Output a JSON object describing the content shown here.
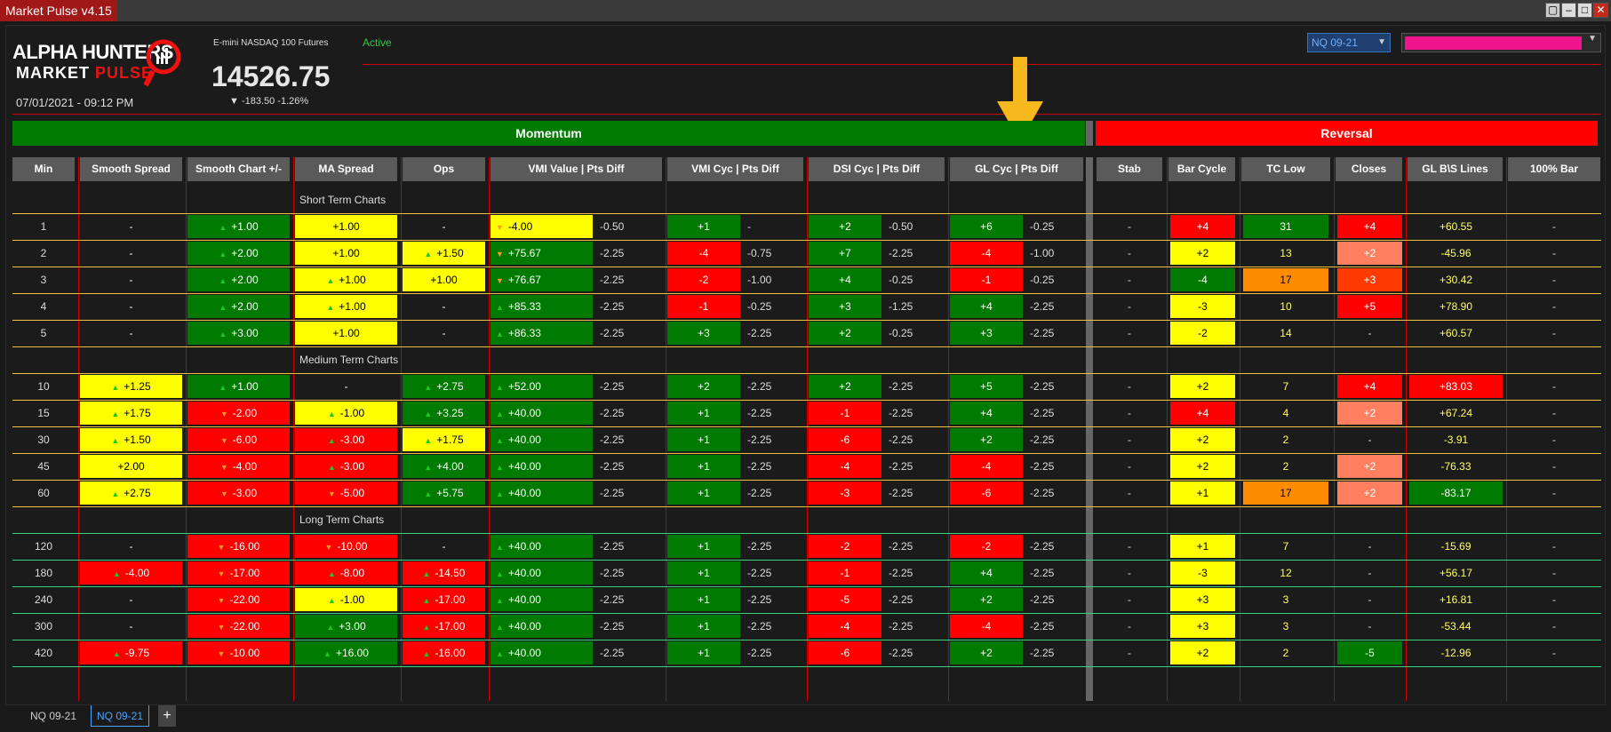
{
  "window": {
    "title": "Market Pulse v4.15"
  },
  "header": {
    "logo_line1_a": "ALPHA",
    "logo_line1_b": "HUNTERS",
    "logo_line2_a": "MARKET",
    "logo_line2_b": "PULSE",
    "instrument_name": "E-mini NASDAQ 100 Futures",
    "status": "Active",
    "price": "14526.75",
    "change": "▼ -183.50 -1.26%",
    "datetime": "07/01/2021 - 09:12 PM",
    "instrument_select": "NQ 09-21"
  },
  "colors": {
    "accent": "#c00000",
    "up": "#1ec81e",
    "down": "#ff9a1e",
    "green": "#007a00",
    "red": "#ff0000",
    "yellow": "#ffff00",
    "highlight": "#f0148c"
  },
  "bars": {
    "momentum": "Momentum",
    "reversal": "Reversal"
  },
  "columns": [
    "Min",
    "Smooth Spread",
    "Smooth Chart +/-",
    "MA Spread",
    "Ops",
    "VMI Value | Pts Diff",
    "VMI Cyc | Pts Diff",
    "DSI Cyc | Pts Diff",
    "GL Cyc | Pts Diff",
    "Stab",
    "Bar Cycle",
    "TC Low",
    "Closes",
    "GL B\\S Lines",
    "100% Bar"
  ],
  "sections": [
    "Short Term Charts",
    "Medium Term Charts",
    "Long Term Charts"
  ],
  "rows": [
    {
      "min": "1",
      "ss": [
        "-",
        ""
      ],
      "sc": [
        "+1.00",
        "g",
        "u"
      ],
      "ma": [
        "+1.00",
        "y",
        ""
      ],
      "ops": [
        "-",
        "",
        ""
      ],
      "vmi": [
        "-4.00",
        "y",
        "d"
      ],
      "vmid": "-0.50",
      "vc": [
        "+1",
        "g"
      ],
      "vcd": "-",
      "dc": [
        "+2",
        "g"
      ],
      "dcd": "-0.50",
      "gc": [
        "+6",
        "g"
      ],
      "gcd": "-0.25",
      "stab": "-",
      "bc": [
        "+4",
        "r"
      ],
      "tc": [
        "31",
        "g"
      ],
      "cl": [
        "+4",
        "r"
      ],
      "gl": [
        "+60.55",
        ""
      ],
      "hb": "-"
    },
    {
      "min": "2",
      "ss": [
        "-",
        ""
      ],
      "sc": [
        "+2.00",
        "g",
        "u"
      ],
      "ma": [
        "+1.00",
        "y",
        ""
      ],
      "ops": [
        "+1.50",
        "y",
        "u"
      ],
      "vmi": [
        "+75.67",
        "g",
        "d"
      ],
      "vmid": "-2.25",
      "vc": [
        "-4",
        "r"
      ],
      "vcd": "-0.75",
      "dc": [
        "+7",
        "g"
      ],
      "dcd": "-2.25",
      "gc": [
        "-4",
        "r"
      ],
      "gcd": "-1.00",
      "stab": "-",
      "bc": [
        "+2",
        "y"
      ],
      "tc": [
        "13",
        ""
      ],
      "cl": [
        "+2",
        "s"
      ],
      "gl": [
        "-45.96",
        ""
      ],
      "hb": "-"
    },
    {
      "min": "3",
      "ss": [
        "-",
        ""
      ],
      "sc": [
        "+2.00",
        "g",
        "u"
      ],
      "ma": [
        "+1.00",
        "y",
        "u"
      ],
      "ops": [
        "+1.00",
        "y",
        ""
      ],
      "vmi": [
        "+76.67",
        "g",
        "d"
      ],
      "vmid": "-2.25",
      "vc": [
        "-2",
        "r"
      ],
      "vcd": "-1.00",
      "dc": [
        "+4",
        "g"
      ],
      "dcd": "-0.25",
      "gc": [
        "-1",
        "r"
      ],
      "gcd": "-0.25",
      "stab": "-",
      "bc": [
        "-4",
        "g"
      ],
      "tc": [
        "17",
        "o"
      ],
      "cl": [
        "+3",
        "rd"
      ],
      "gl": [
        "+30.42",
        ""
      ],
      "hb": "-"
    },
    {
      "min": "4",
      "ss": [
        "-",
        ""
      ],
      "sc": [
        "+2.00",
        "g",
        "u"
      ],
      "ma": [
        "+1.00",
        "y",
        "u"
      ],
      "ops": [
        "-",
        "",
        ""
      ],
      "vmi": [
        "+85.33",
        "g",
        "u"
      ],
      "vmid": "-2.25",
      "vc": [
        "-1",
        "r"
      ],
      "vcd": "-0.25",
      "dc": [
        "+3",
        "g"
      ],
      "dcd": "-1.25",
      "gc": [
        "+4",
        "g"
      ],
      "gcd": "-2.25",
      "stab": "-",
      "bc": [
        "-3",
        "y"
      ],
      "tc": [
        "10",
        ""
      ],
      "cl": [
        "+5",
        "r"
      ],
      "gl": [
        "+78.90",
        ""
      ],
      "hb": "-"
    },
    {
      "min": "5",
      "ss": [
        "-",
        ""
      ],
      "sc": [
        "+3.00",
        "g",
        "u"
      ],
      "ma": [
        "+1.00",
        "y",
        ""
      ],
      "ops": [
        "-",
        "",
        ""
      ],
      "vmi": [
        "+86.33",
        "g",
        "u"
      ],
      "vmid": "-2.25",
      "vc": [
        "+3",
        "g"
      ],
      "vcd": "-2.25",
      "dc": [
        "+2",
        "g"
      ],
      "dcd": "-0.25",
      "gc": [
        "+3",
        "g"
      ],
      "gcd": "-2.25",
      "stab": "-",
      "bc": [
        "-2",
        "y"
      ],
      "tc": [
        "14",
        ""
      ],
      "cl": [
        "-",
        ""
      ],
      "gl": [
        "+60.57",
        ""
      ],
      "hb": "-"
    },
    {
      "min": "10",
      "ss": [
        "+1.25",
        "y",
        "u"
      ],
      "sc": [
        "+1.00",
        "g",
        "u"
      ],
      "ma": [
        "-",
        "",
        ""
      ],
      "ops": [
        "+2.75",
        "g",
        "u"
      ],
      "vmi": [
        "+52.00",
        "g",
        "u"
      ],
      "vmid": "-2.25",
      "vc": [
        "+2",
        "g"
      ],
      "vcd": "-2.25",
      "dc": [
        "+2",
        "g"
      ],
      "dcd": "-2.25",
      "gc": [
        "+5",
        "g"
      ],
      "gcd": "-2.25",
      "stab": "-",
      "bc": [
        "+2",
        "y"
      ],
      "tc": [
        "7",
        ""
      ],
      "cl": [
        "+4",
        "r"
      ],
      "gl": [
        "+83.03",
        "r"
      ],
      "hb": "-"
    },
    {
      "min": "15",
      "ss": [
        "+1.75",
        "y",
        "u"
      ],
      "sc": [
        "-2.00",
        "r",
        "d"
      ],
      "ma": [
        "-1.00",
        "y",
        "u"
      ],
      "ops": [
        "+3.25",
        "g",
        "u"
      ],
      "vmi": [
        "+40.00",
        "g",
        "u"
      ],
      "vmid": "-2.25",
      "vc": [
        "+1",
        "g"
      ],
      "vcd": "-2.25",
      "dc": [
        "-1",
        "r"
      ],
      "dcd": "-2.25",
      "gc": [
        "+4",
        "g"
      ],
      "gcd": "-2.25",
      "stab": "-",
      "bc": [
        "+4",
        "r"
      ],
      "tc": [
        "4",
        ""
      ],
      "cl": [
        "+2",
        "s"
      ],
      "gl": [
        "+67.24",
        ""
      ],
      "hb": "-"
    },
    {
      "min": "30",
      "ss": [
        "+1.50",
        "y",
        "u"
      ],
      "sc": [
        "-6.00",
        "r",
        "d"
      ],
      "ma": [
        "-3.00",
        "r",
        "u"
      ],
      "ops": [
        "+1.75",
        "y",
        "u"
      ],
      "vmi": [
        "+40.00",
        "g",
        "u"
      ],
      "vmid": "-2.25",
      "vc": [
        "+1",
        "g"
      ],
      "vcd": "-2.25",
      "dc": [
        "-6",
        "r"
      ],
      "dcd": "-2.25",
      "gc": [
        "+2",
        "g"
      ],
      "gcd": "-2.25",
      "stab": "-",
      "bc": [
        "+2",
        "y"
      ],
      "tc": [
        "2",
        ""
      ],
      "cl": [
        "-",
        ""
      ],
      "gl": [
        "-3.91",
        ""
      ],
      "hb": "-"
    },
    {
      "min": "45",
      "ss": [
        "+2.00",
        "y",
        ""
      ],
      "sc": [
        "-4.00",
        "r",
        "d"
      ],
      "ma": [
        "-3.00",
        "r",
        "u"
      ],
      "ops": [
        "+4.00",
        "g",
        "u"
      ],
      "vmi": [
        "+40.00",
        "g",
        "u"
      ],
      "vmid": "-2.25",
      "vc": [
        "+1",
        "g"
      ],
      "vcd": "-2.25",
      "dc": [
        "-4",
        "r"
      ],
      "dcd": "-2.25",
      "gc": [
        "-4",
        "r"
      ],
      "gcd": "-2.25",
      "stab": "-",
      "bc": [
        "+2",
        "y"
      ],
      "tc": [
        "2",
        ""
      ],
      "cl": [
        "+2",
        "s"
      ],
      "gl": [
        "-76.33",
        ""
      ],
      "hb": "-"
    },
    {
      "min": "60",
      "ss": [
        "+2.75",
        "y",
        "u"
      ],
      "sc": [
        "-3.00",
        "r",
        "d"
      ],
      "ma": [
        "-5.00",
        "r",
        "d"
      ],
      "ops": [
        "+5.75",
        "g",
        "u"
      ],
      "vmi": [
        "+40.00",
        "g",
        "u"
      ],
      "vmid": "-2.25",
      "vc": [
        "+1",
        "g"
      ],
      "vcd": "-2.25",
      "dc": [
        "-3",
        "r"
      ],
      "dcd": "-2.25",
      "gc": [
        "-6",
        "r"
      ],
      "gcd": "-2.25",
      "stab": "-",
      "bc": [
        "+1",
        "y"
      ],
      "tc": [
        "17",
        "o"
      ],
      "cl": [
        "+2",
        "s"
      ],
      "gl": [
        "-83.17",
        "g"
      ],
      "hb": "-"
    },
    {
      "min": "120",
      "ss": [
        "-",
        ""
      ],
      "sc": [
        "-16.00",
        "r",
        "d"
      ],
      "ma": [
        "-10.00",
        "r",
        "d"
      ],
      "ops": [
        "-",
        "",
        ""
      ],
      "vmi": [
        "+40.00",
        "g",
        "u"
      ],
      "vmid": "-2.25",
      "vc": [
        "+1",
        "g"
      ],
      "vcd": "-2.25",
      "dc": [
        "-2",
        "r"
      ],
      "dcd": "-2.25",
      "gc": [
        "-2",
        "r"
      ],
      "gcd": "-2.25",
      "stab": "-",
      "bc": [
        "+1",
        "y"
      ],
      "tc": [
        "7",
        ""
      ],
      "cl": [
        "-",
        ""
      ],
      "gl": [
        "-15.69",
        ""
      ],
      "hb": "-"
    },
    {
      "min": "180",
      "ss": [
        "-4.00",
        "r",
        "u"
      ],
      "sc": [
        "-17.00",
        "r",
        "d"
      ],
      "ma": [
        "-8.00",
        "r",
        "u"
      ],
      "ops": [
        "-14.50",
        "r",
        "u"
      ],
      "vmi": [
        "+40.00",
        "g",
        "u"
      ],
      "vmid": "-2.25",
      "vc": [
        "+1",
        "g"
      ],
      "vcd": "-2.25",
      "dc": [
        "-1",
        "r"
      ],
      "dcd": "-2.25",
      "gc": [
        "+4",
        "g"
      ],
      "gcd": "-2.25",
      "stab": "-",
      "bc": [
        "-3",
        "y"
      ],
      "tc": [
        "12",
        ""
      ],
      "cl": [
        "-",
        ""
      ],
      "gl": [
        "+56.17",
        ""
      ],
      "hb": "-"
    },
    {
      "min": "240",
      "ss": [
        "-",
        ""
      ],
      "sc": [
        "-22.00",
        "r",
        "d"
      ],
      "ma": [
        "-1.00",
        "y",
        "u"
      ],
      "ops": [
        "-17.00",
        "r",
        "u"
      ],
      "vmi": [
        "+40.00",
        "g",
        "u"
      ],
      "vmid": "-2.25",
      "vc": [
        "+1",
        "g"
      ],
      "vcd": "-2.25",
      "dc": [
        "-5",
        "r"
      ],
      "dcd": "-2.25",
      "gc": [
        "+2",
        "g"
      ],
      "gcd": "-2.25",
      "stab": "-",
      "bc": [
        "+3",
        "y"
      ],
      "tc": [
        "3",
        ""
      ],
      "cl": [
        "-",
        ""
      ],
      "gl": [
        "+16.81",
        ""
      ],
      "hb": "-"
    },
    {
      "min": "300",
      "ss": [
        "-",
        ""
      ],
      "sc": [
        "-22.00",
        "r",
        "d"
      ],
      "ma": [
        "+3.00",
        "g",
        "u"
      ],
      "ops": [
        "-17.00",
        "r",
        "u"
      ],
      "vmi": [
        "+40.00",
        "g",
        "u"
      ],
      "vmid": "-2.25",
      "vc": [
        "+1",
        "g"
      ],
      "vcd": "-2.25",
      "dc": [
        "-4",
        "r"
      ],
      "dcd": "-2.25",
      "gc": [
        "-4",
        "r"
      ],
      "gcd": "-2.25",
      "stab": "-",
      "bc": [
        "+3",
        "y"
      ],
      "tc": [
        "3",
        ""
      ],
      "cl": [
        "-",
        ""
      ],
      "gl": [
        "-53.44",
        ""
      ],
      "hb": "-"
    },
    {
      "min": "420",
      "ss": [
        "-9.75",
        "r",
        "u"
      ],
      "sc": [
        "-10.00",
        "r",
        "d"
      ],
      "ma": [
        "+16.00",
        "g",
        "u"
      ],
      "ops": [
        "-16.00",
        "r",
        "u"
      ],
      "vmi": [
        "+40.00",
        "g",
        "u"
      ],
      "vmid": "-2.25",
      "vc": [
        "+1",
        "g"
      ],
      "vcd": "-2.25",
      "dc": [
        "-6",
        "r"
      ],
      "dcd": "-2.25",
      "gc": [
        "+2",
        "g"
      ],
      "gcd": "-2.25",
      "stab": "-",
      "bc": [
        "+2",
        "y"
      ],
      "tc": [
        "2",
        ""
      ],
      "cl": [
        "-5",
        "g"
      ],
      "gl": [
        "-12.96",
        ""
      ],
      "hb": "-"
    }
  ],
  "tabs": [
    "NQ 09-21",
    "NQ 09-21",
    "+"
  ]
}
